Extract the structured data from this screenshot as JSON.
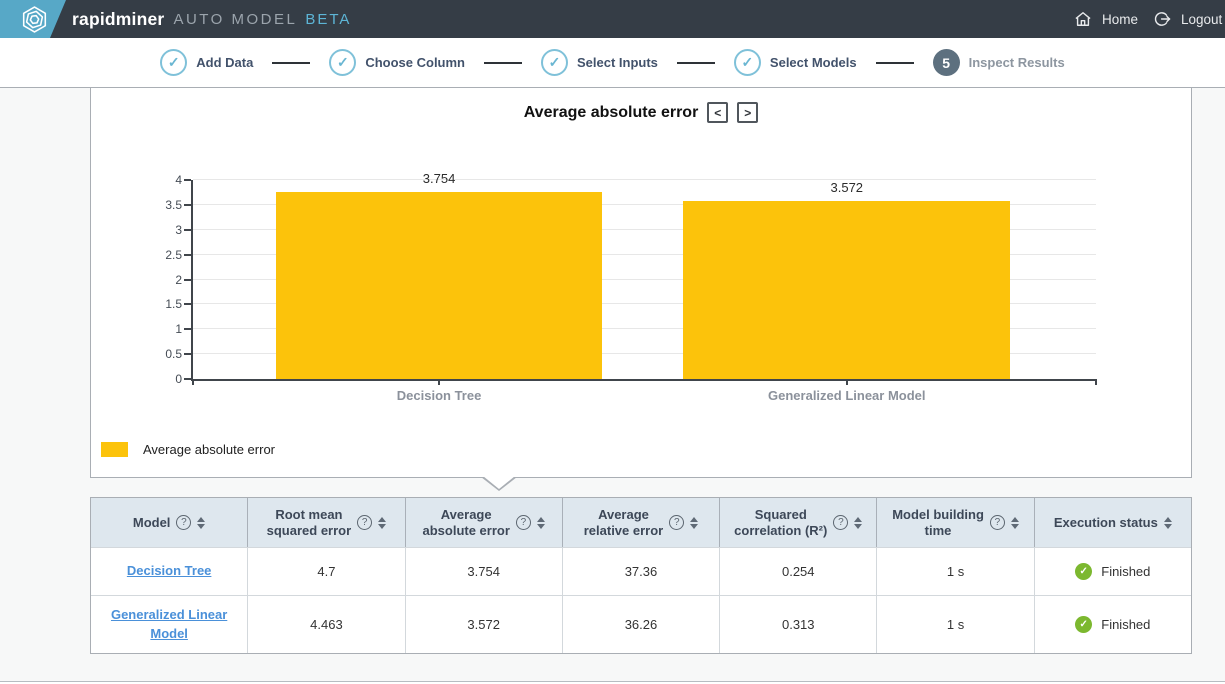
{
  "topbar": {
    "brand": "rapidminer",
    "product": "AUTO MODEL",
    "beta_badge": "BETA",
    "home_label": "Home",
    "logout_label": "Logout"
  },
  "stepper": {
    "check_glyph": "✓",
    "steps": [
      {
        "label": "Add Data",
        "state": "completed"
      },
      {
        "label": "Choose Column",
        "state": "completed"
      },
      {
        "label": "Select Inputs",
        "state": "completed"
      },
      {
        "label": "Select Models",
        "state": "completed"
      },
      {
        "label": "Inspect Results",
        "state": "current",
        "number": "5"
      }
    ]
  },
  "chart": {
    "title": "Average absolute error",
    "prev_button": "<",
    "next_button": ">",
    "legend_label": "Average absolute error"
  },
  "chart_data": {
    "type": "bar",
    "title": "Average absolute error",
    "categories": [
      "Decision Tree",
      "Generalized Linear Model"
    ],
    "values": [
      3.754,
      3.572
    ],
    "data_labels": [
      "3.754",
      "3.572"
    ],
    "ylim": [
      0,
      4
    ],
    "yticks": [
      0,
      0.5,
      1,
      1.5,
      2,
      2.5,
      3,
      3.5,
      4
    ],
    "bar_color": "#fcc30b",
    "grid": true,
    "legend": [
      "Average absolute error"
    ],
    "legend_position": "bottom-left"
  },
  "table": {
    "help_glyph": "?",
    "status_check_glyph": "✓",
    "columns": [
      {
        "label": "Model",
        "help": true,
        "sortable": true
      },
      {
        "label": "Root mean\nsquared error",
        "help": true,
        "sortable": true
      },
      {
        "label": "Average\nabsolute error",
        "help": true,
        "sortable": true
      },
      {
        "label": "Average\nrelative error",
        "help": true,
        "sortable": true
      },
      {
        "label": "Squared\ncorrelation (R²)",
        "help": true,
        "sortable": true
      },
      {
        "label": "Model building\ntime",
        "help": true,
        "sortable": true
      },
      {
        "label": "Execution status",
        "help": false,
        "sortable": true
      }
    ],
    "rows": [
      {
        "model": "Decision Tree",
        "root_mean_squared_error": "4.7",
        "average_absolute_error": "3.754",
        "average_relative_error": "37.36",
        "squared_correlation": "0.254",
        "model_building_time": "1 s",
        "execution_status": "Finished"
      },
      {
        "model": "Generalized Linear Model",
        "root_mean_squared_error": "4.463",
        "average_absolute_error": "3.572",
        "average_relative_error": "36.26",
        "squared_correlation": "0.313",
        "model_building_time": "1 s",
        "execution_status": "Finished"
      }
    ]
  },
  "colors": {
    "topbar_bg": "#353d46",
    "logo_bg": "#57a8c7",
    "beta_text": "#5db5d6",
    "accent_blue": "#69b6d2",
    "bar_color": "#fcc30b",
    "link_blue": "#4a90d9",
    "status_green": "#7cb82f",
    "table_header_bg": "#dee7ee"
  }
}
